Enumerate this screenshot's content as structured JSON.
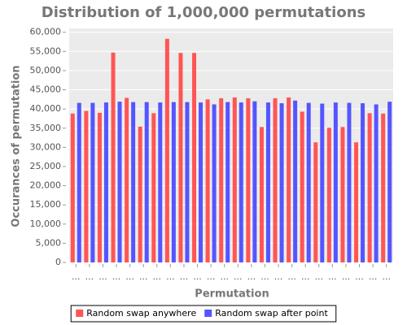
{
  "chart_data": {
    "type": "bar",
    "title": "Distribution of 1,000,000 permutations",
    "x_label": "Permutation",
    "y_label": "Occurances of permutation",
    "categories": [
      "...",
      "...",
      "...",
      "...",
      "...",
      "...",
      "...",
      "...",
      "...",
      "...",
      "...",
      "...",
      "...",
      "...",
      "...",
      "...",
      "...",
      "...",
      "...",
      "...",
      "...",
      "...",
      "...",
      "..."
    ],
    "series": [
      {
        "name": "Random swap anywhere",
        "color": "#ff5555",
        "values": [
          38800,
          39500,
          39000,
          54700,
          42900,
          35400,
          38900,
          58300,
          54600,
          54600,
          42500,
          42800,
          43000,
          42800,
          35300,
          42800,
          43000,
          39300,
          31300,
          35100,
          35300,
          31300,
          38900,
          38800
        ]
      },
      {
        "name": "Random swap after point",
        "color": "#5555ff",
        "values": [
          41600,
          41600,
          41700,
          41900,
          41800,
          41800,
          41700,
          41800,
          41800,
          41700,
          41200,
          41800,
          41700,
          42000,
          41700,
          41500,
          42200,
          41600,
          41400,
          41700,
          41600,
          41500,
          41200,
          41900
        ]
      }
    ],
    "ylim": [
      0,
      61000
    ],
    "yticks": [
      0,
      {
        "value": 5000,
        "label": "5,000"
      },
      {
        "value": 10000,
        "label": "10,000"
      },
      {
        "value": 15000,
        "label": "15,000"
      },
      {
        "value": 20000,
        "label": "20,000"
      },
      {
        "value": 25000,
        "label": "25,000"
      },
      {
        "value": 30000,
        "label": "30,000"
      },
      {
        "value": 35000,
        "label": "35,000"
      },
      {
        "value": 40000,
        "label": "40,000"
      },
      {
        "value": 45000,
        "label": "45,000"
      },
      {
        "value": 50000,
        "label": "50,000"
      },
      {
        "value": 55000,
        "label": "55,000"
      },
      {
        "value": 60000,
        "label": "60,000"
      }
    ],
    "grid": true,
    "legend": "bottom"
  }
}
